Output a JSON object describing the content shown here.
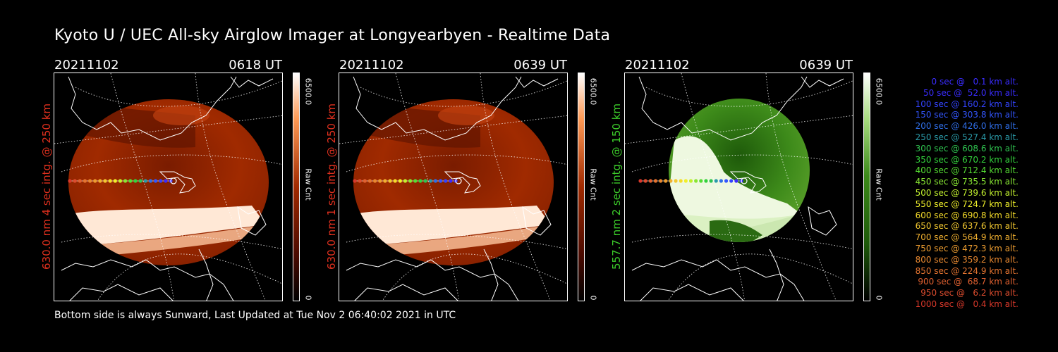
{
  "title": "Kyoto U / UEC All-sky Airglow Imager at Longyearbyen - Realtime Data",
  "footer": "Bottom side is always Sunward, Last Updated at Tue Nov  2 06:40:02 2021 in UTC",
  "panels": [
    {
      "date": "20211102",
      "time": "0618 UT",
      "side_label": "630.0 nm 4 sec intg. @ 250 km",
      "label_color": "#e0301e",
      "cbar_max": "6500.0",
      "cbar_min": "0",
      "cbar_unit": "Raw Cnt",
      "palette": "red"
    },
    {
      "date": "20211102",
      "time": "0639 UT",
      "side_label": "630.0 nm 1 sec intg. @ 250 km",
      "label_color": "#e0301e",
      "cbar_max": "6500.0",
      "cbar_min": "0",
      "cbar_unit": "Raw Cnt",
      "palette": "red"
    },
    {
      "date": "20211102",
      "time": "0639 UT",
      "side_label": "557.7 nm 2 sec intg. @ 150 km",
      "label_color": "#3ccc2a",
      "cbar_max": "6500.0",
      "cbar_min": "0",
      "cbar_unit": "Raw Cnt",
      "palette": "green"
    }
  ],
  "legend": [
    {
      "text": "0 sec @   0.1 km alt.",
      "color": "#3a2cff"
    },
    {
      "text": "50 sec @  52.0 km alt.",
      "color": "#3a2cff"
    },
    {
      "text": "100 sec @ 160.2 km alt.",
      "color": "#3344ff"
    },
    {
      "text": "150 sec @ 303.8 km alt.",
      "color": "#3356ff"
    },
    {
      "text": "200 sec @ 426.0 km alt.",
      "color": "#2f6ee8"
    },
    {
      "text": "250 sec @ 527.4 km alt.",
      "color": "#2a9aa8"
    },
    {
      "text": "300 sec @ 608.6 km alt.",
      "color": "#2fc450"
    },
    {
      "text": "350 sec @ 670.2 km alt.",
      "color": "#33d23c"
    },
    {
      "text": "400 sec @ 712.4 km alt.",
      "color": "#55dd33"
    },
    {
      "text": "450 sec @ 735.5 km alt.",
      "color": "#88e633"
    },
    {
      "text": "500 sec @ 739.6 km alt.",
      "color": "#c2f02e"
    },
    {
      "text": "550 sec @ 724.7 km alt.",
      "color": "#f0f02a"
    },
    {
      "text": "600 sec @ 690.8 km alt.",
      "color": "#f5dc2a"
    },
    {
      "text": "650 sec @ 637.6 km alt.",
      "color": "#f2c830"
    },
    {
      "text": "700 sec @ 564.9 km alt.",
      "color": "#f0b030"
    },
    {
      "text": "750 sec @ 472.3 km alt.",
      "color": "#ec9c30"
    },
    {
      "text": "800 sec @ 359.2 km alt.",
      "color": "#e88830"
    },
    {
      "text": "850 sec @ 224.9 km alt.",
      "color": "#e47430"
    },
    {
      "text": "900 sec @  68.7 km alt.",
      "color": "#e06030"
    },
    {
      "text": "950 sec @   6.2 km alt.",
      "color": "#dc4c2e"
    },
    {
      "text": "1000 sec @   0.4 km alt.",
      "color": "#d8382a"
    }
  ],
  "colors": {
    "red_dark": "#4a0a00",
    "red_mid": "#a02a00",
    "red_bright": "#ffe8d6",
    "green_dark": "#1e5a0a",
    "green_mid": "#3d8a1a",
    "green_bright": "#eef8e0"
  }
}
